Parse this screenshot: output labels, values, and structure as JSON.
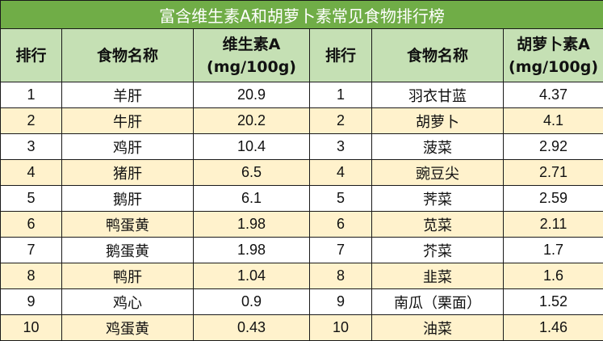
{
  "title": "富含维生素A和胡萝卜素常见食物排行榜",
  "headers": {
    "rank1": "排行",
    "food1": "食物名称",
    "value1_line1": "维生素A",
    "value1_line2": "(mg/100g)",
    "rank2": "排行",
    "food2": "食物名称",
    "value2_line1": "胡萝卜素A",
    "value2_line2": "(mg/100g)"
  },
  "rows": [
    {
      "rank1": "1",
      "food1": "羊肝",
      "value1": "20.9",
      "rank2": "1",
      "food2": "羽衣甘蓝",
      "value2": "4.37"
    },
    {
      "rank1": "2",
      "food1": "牛肝",
      "value1": "20.2",
      "rank2": "2",
      "food2": "胡萝卜",
      "value2": "4.1"
    },
    {
      "rank1": "3",
      "food1": "鸡肝",
      "value1": "10.4",
      "rank2": "3",
      "food2": "菠菜",
      "value2": "2.92"
    },
    {
      "rank1": "4",
      "food1": "猪肝",
      "value1": "6.5",
      "rank2": "4",
      "food2": "豌豆尖",
      "value2": "2.71"
    },
    {
      "rank1": "5",
      "food1": "鹅肝",
      "value1": "6.1",
      "rank2": "5",
      "food2": "荠菜",
      "value2": "2.59"
    },
    {
      "rank1": "6",
      "food1": "鸭蛋黄",
      "value1": "1.98",
      "rank2": "6",
      "food2": "苋菜",
      "value2": "2.11"
    },
    {
      "rank1": "7",
      "food1": "鹅蛋黄",
      "value1": "1.98",
      "rank2": "7",
      "food2": "芥菜",
      "value2": "1.7"
    },
    {
      "rank1": "8",
      "food1": "鸭肝",
      "value1": "1.04",
      "rank2": "8",
      "food2": "韭菜",
      "value2": "1.6"
    },
    {
      "rank1": "9",
      "food1": "鸡心",
      "value1": "0.9",
      "rank2": "9",
      "food2": "南瓜（栗面）",
      "value2": "1.52"
    },
    {
      "rank1": "10",
      "food1": "鸡蛋黄",
      "value1": "0.43",
      "rank2": "10",
      "food2": "油菜",
      "value2": "1.46"
    }
  ],
  "colors": {
    "title_bg": "#70AD47",
    "header_bg": "#C5E0B4",
    "stripe_bg": "#FFF2CC",
    "border": "#1a1a1a"
  }
}
